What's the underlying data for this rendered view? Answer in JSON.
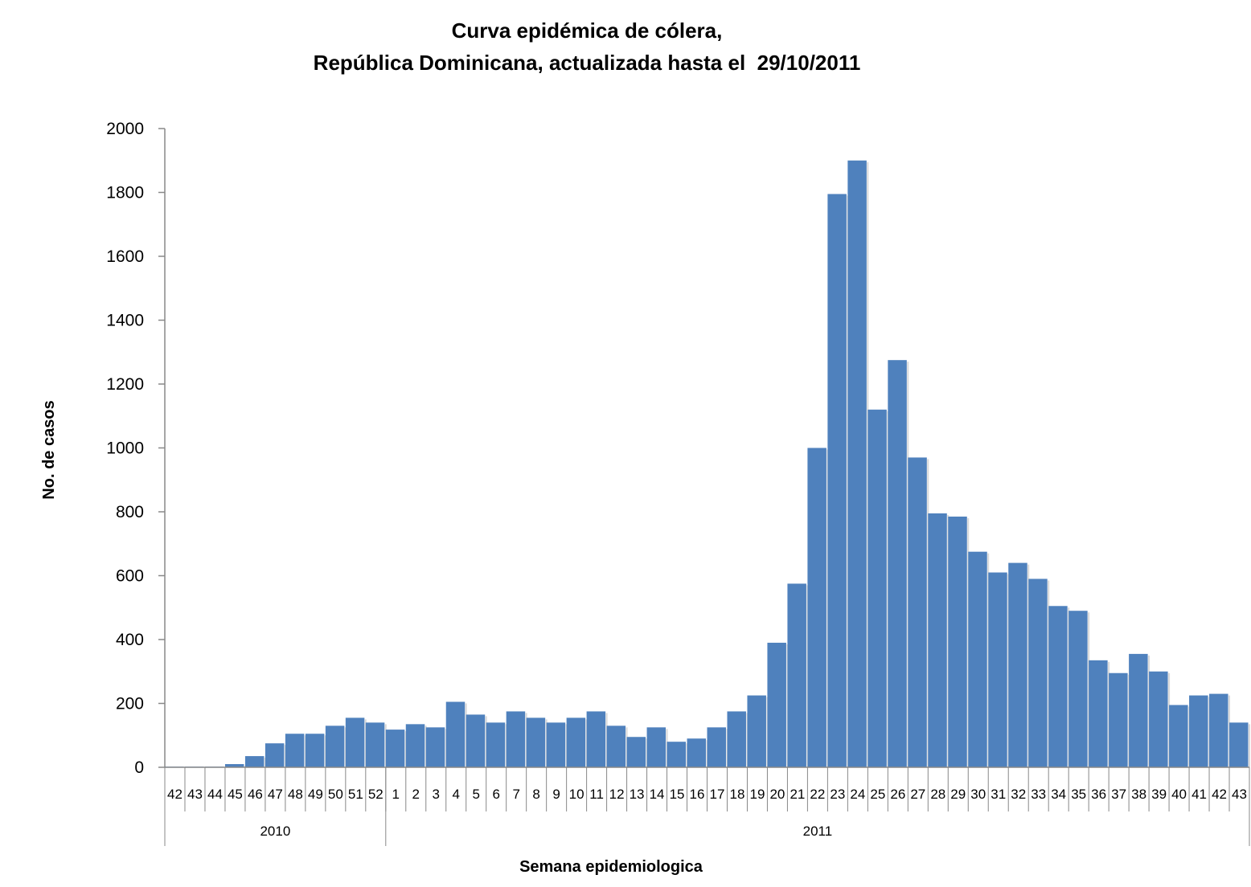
{
  "chart_data": {
    "type": "bar",
    "title_line1": "Curva epidémica de cólera,",
    "title_line2": "República Dominicana, actualizada hasta el  29/10/2011",
    "xlabel": "Semana epidemiologica",
    "ylabel": "No. de casos",
    "ylim": [
      0,
      2000
    ],
    "yticks": [
      0,
      200,
      400,
      600,
      800,
      1000,
      1200,
      1400,
      1600,
      1800,
      2000
    ],
    "groups": [
      {
        "label": "2010",
        "count": 11
      },
      {
        "label": "2011",
        "count": 43
      }
    ],
    "categories": [
      "42",
      "43",
      "44",
      "45",
      "46",
      "47",
      "48",
      "49",
      "50",
      "51",
      "52",
      "1",
      "2",
      "3",
      "4",
      "5",
      "6",
      "7",
      "8",
      "9",
      "10",
      "11",
      "12",
      "13",
      "14",
      "15",
      "16",
      "17",
      "18",
      "19",
      "20",
      "21",
      "22",
      "23",
      "24",
      "25",
      "26",
      "27",
      "28",
      "29",
      "30",
      "31",
      "32",
      "33",
      "34",
      "35",
      "36",
      "37",
      "38",
      "39",
      "40",
      "41",
      "42",
      "43"
    ],
    "values": [
      2,
      2,
      2,
      10,
      35,
      75,
      105,
      105,
      130,
      155,
      140,
      118,
      135,
      125,
      205,
      165,
      140,
      175,
      155,
      140,
      155,
      175,
      130,
      95,
      125,
      80,
      90,
      125,
      175,
      225,
      390,
      575,
      1000,
      1795,
      1900,
      1120,
      1275,
      970,
      795,
      785,
      675,
      610,
      640,
      590,
      505,
      490,
      335,
      295,
      355,
      300,
      195,
      225,
      230,
      140
    ],
    "bar_color": "#4F81BD",
    "grid": false,
    "legend": "none"
  }
}
